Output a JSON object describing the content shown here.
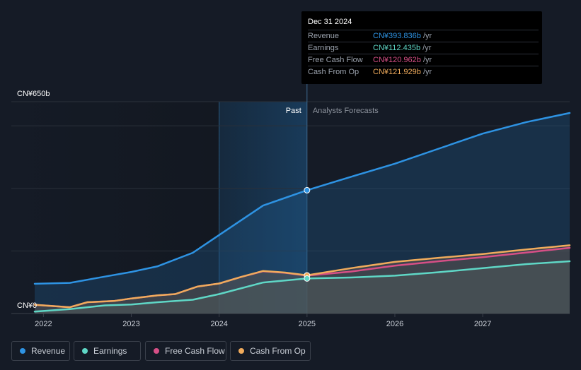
{
  "chart_data": {
    "type": "line",
    "title": "",
    "y_unit_prefix": "CN¥",
    "ytick_labels": [
      "CN¥650b",
      "CN¥0"
    ],
    "ylim": [
      0,
      650
    ],
    "xlim": [
      2021.9,
      2027.99
    ],
    "xtick_labels": [
      "2022",
      "2023",
      "2024",
      "2025",
      "2026",
      "2027"
    ],
    "xtick_values": [
      2022,
      2023,
      2024,
      2025,
      2026,
      2027
    ],
    "past_label": "Past",
    "forecast_label": "Analysts Forecasts",
    "past_end_x": 2025.0,
    "shade_start_x": 2024.0,
    "series": [
      {
        "name": "Revenue",
        "color": "#2e93e3",
        "x": [
          2021.9,
          2022.3,
          2022.7,
          2023.0,
          2023.3,
          2023.7,
          2024.0,
          2024.5,
          2025.0,
          2025.5,
          2026.0,
          2026.5,
          2027.0,
          2027.5,
          2027.99
        ],
        "y": [
          95,
          98,
          118,
          133,
          151,
          194,
          251,
          345,
          394,
          437,
          479,
          527,
          575,
          612,
          641
        ]
      },
      {
        "name": "Earnings",
        "color": "#5fd7c6",
        "x": [
          2021.9,
          2022.3,
          2022.7,
          2023.0,
          2023.3,
          2023.7,
          2024.0,
          2024.5,
          2025.0,
          2025.5,
          2026.0,
          2026.5,
          2027.0,
          2027.5,
          2027.99
        ],
        "y": [
          6,
          14,
          26,
          29,
          36,
          44,
          62,
          99,
          112,
          115,
          121,
          132,
          145,
          158,
          167
        ]
      },
      {
        "name": "Free Cash Flow",
        "color": "#d64f86",
        "x": [
          2021.9,
          2022.1,
          2022.3,
          2022.5,
          2022.8,
          2023.0,
          2023.3,
          2023.5,
          2023.75,
          2024.0,
          2024.25,
          2024.5,
          2024.75,
          2025.0,
          2025.5,
          2026.0,
          2026.5,
          2027.0,
          2027.5,
          2027.99
        ],
        "y": [
          28,
          24,
          20,
          36,
          40,
          48,
          58,
          62,
          86,
          96,
          117,
          135,
          130,
          121,
          134,
          153,
          167,
          180,
          195,
          210
        ]
      },
      {
        "name": "Cash From Op",
        "color": "#f0ab5c",
        "x": [
          2021.9,
          2022.1,
          2022.3,
          2022.5,
          2022.8,
          2023.0,
          2023.3,
          2023.5,
          2023.75,
          2024.0,
          2024.25,
          2024.5,
          2024.75,
          2025.0,
          2025.5,
          2026.0,
          2026.5,
          2027.0,
          2027.5,
          2027.99
        ],
        "y": [
          28,
          24,
          20,
          36,
          40,
          48,
          58,
          62,
          86,
          96,
          117,
          136,
          131,
          122,
          145,
          165,
          178,
          190,
          205,
          218
        ]
      }
    ]
  },
  "tooltip": {
    "date": "Dec 31 2024",
    "unit": " /yr",
    "rows": [
      {
        "label": "Revenue",
        "value": "CN¥393.836b",
        "color": "#2e93e3"
      },
      {
        "label": "Earnings",
        "value": "CN¥112.435b",
        "color": "#5fd7c6"
      },
      {
        "label": "Free Cash Flow",
        "value": "CN¥120.962b",
        "color": "#d64f86"
      },
      {
        "label": "Cash From Op",
        "value": "CN¥121.929b",
        "color": "#f0ab5c"
      }
    ]
  },
  "legend": [
    {
      "label": "Revenue",
      "color": "#2e93e3"
    },
    {
      "label": "Earnings",
      "color": "#5fd7c6"
    },
    {
      "label": "Free Cash Flow",
      "color": "#d64f86"
    },
    {
      "label": "Cash From Op",
      "color": "#f0ab5c"
    }
  ]
}
